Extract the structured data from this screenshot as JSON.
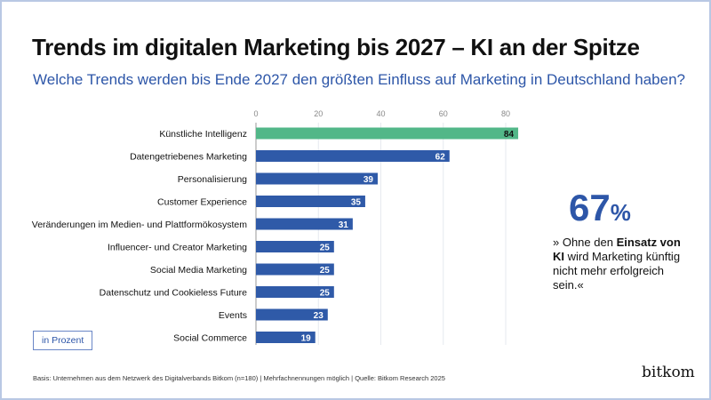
{
  "title": "Trends im digitalen Marketing bis 2027 – KI an der Spitze",
  "subtitle": "Welche Trends werden bis Ende 2027 den größten Einfluss auf Marketing in Deutschland haben?",
  "unit_label": "in Prozent",
  "callout": {
    "value": "67",
    "unit": "%",
    "quote_pre": "» Ohne den ",
    "quote_bold": "Einsatz von KI",
    "quote_post": " wird Marketing künftig nicht mehr erfolgreich sein.«"
  },
  "footer": "Basis: Unternehmen aus dem Netzwerk des Digitalverbands Bitkom (n=180) | Mehrfachnennungen möglich | Quelle: Bitkom Research 2025",
  "logo": "bitkom",
  "colors": {
    "highlight": "#52b788",
    "bar": "#2f5aa8",
    "accent": "#2d56a8"
  },
  "chart_data": {
    "type": "bar",
    "orientation": "horizontal",
    "categories": [
      "Künstliche Intelligenz",
      "Datengetriebenes Marketing",
      "Personalisierung",
      "Customer Experience",
      "Veränderungen im Medien- und Plattformökosystem",
      "Influencer- und Creator Marketing",
      "Social Media Marketing",
      "Datenschutz und Cookieless Future",
      "Events",
      "Social Commerce"
    ],
    "values": [
      84,
      62,
      39,
      35,
      31,
      25,
      25,
      25,
      23,
      19
    ],
    "xlim": [
      0,
      85
    ],
    "xticks": [
      0,
      20,
      40,
      60,
      80
    ],
    "grid": true,
    "highlight_index": 0
  }
}
